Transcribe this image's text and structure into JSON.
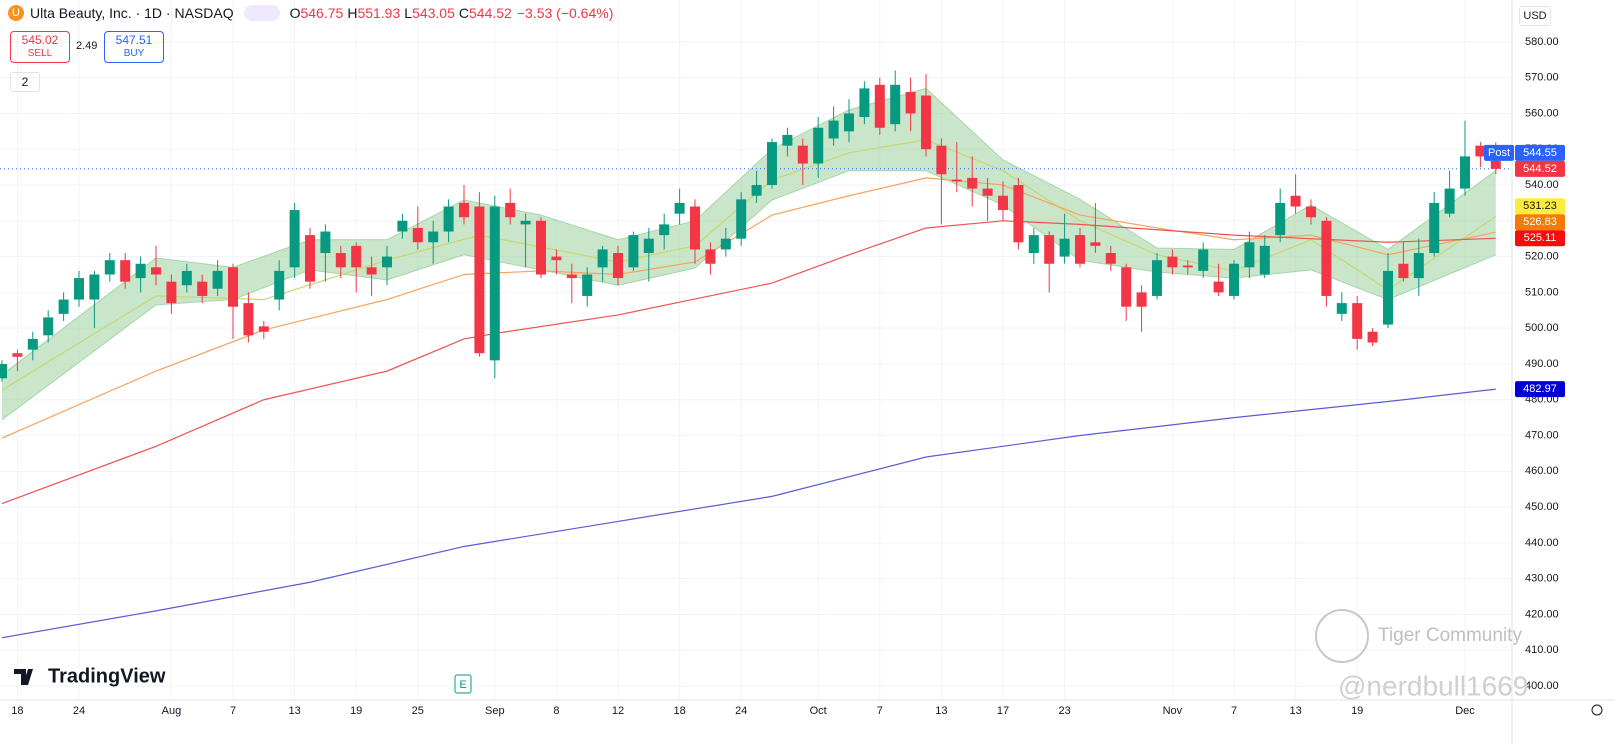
{
  "header": {
    "symbol": "Ulta Beauty, Inc. · 1D · NASDAQ",
    "icon": "U",
    "ohlc_keys": [
      "O",
      "H",
      "L",
      "C"
    ],
    "change": "−3.53 (−0.64%)",
    "sell_price": 545.02,
    "sell_label": "SELL",
    "spread": 2.49,
    "buy_price": 547.51,
    "buy_label": "BUY",
    "indicators": "2",
    "currency": "USD",
    "watermark": "TradingView",
    "community": "Tiger Community",
    "author": "@nerdbull1669",
    "earnings": "E"
  },
  "chart_data": {
    "type": "candlestick",
    "categories": [
      null,
      "18",
      null,
      null,
      null,
      "24",
      null,
      null,
      null,
      null,
      null,
      "Aug",
      null,
      null,
      null,
      "7",
      null,
      null,
      null,
      "13",
      null,
      null,
      null,
      "19",
      null,
      null,
      null,
      "25",
      null,
      null,
      null,
      null,
      "Sep",
      null,
      null,
      null,
      "8",
      null,
      null,
      null,
      "12",
      null,
      null,
      null,
      "18",
      null,
      null,
      null,
      "24",
      null,
      null,
      null,
      null,
      "Oct",
      null,
      null,
      null,
      "7",
      null,
      null,
      null,
      "13",
      null,
      null,
      null,
      "17",
      null,
      null,
      null,
      "23",
      null,
      null,
      null,
      null,
      null,
      null,
      "Nov",
      null,
      null,
      null,
      "7",
      null,
      null,
      null,
      "13",
      null,
      null,
      null,
      "19",
      null,
      null,
      null,
      null,
      null,
      null,
      "Dec",
      null,
      null
    ],
    "open": [
      486,
      493,
      494,
      498,
      504,
      508,
      508,
      515,
      519,
      514,
      517,
      513,
      512,
      513,
      511,
      517,
      507,
      500.5,
      508,
      517,
      526,
      521,
      521,
      523,
      517,
      517,
      527,
      528,
      524,
      527,
      535,
      534,
      491,
      535,
      529,
      530,
      520,
      515,
      509,
      517,
      521,
      517,
      521,
      526,
      532,
      534,
      522,
      522,
      525,
      537,
      540,
      551,
      551,
      546,
      553,
      555,
      559,
      568,
      557,
      566,
      565,
      551,
      541.5,
      542,
      539,
      537,
      540,
      521,
      526,
      520,
      526,
      524,
      521,
      517,
      510,
      509,
      520,
      517.5,
      516,
      513,
      509,
      517,
      515,
      526,
      537,
      534,
      530,
      504,
      507,
      499,
      501,
      518,
      514,
      521,
      532,
      539,
      551,
      546.75
    ],
    "high": [
      491,
      494,
      499,
      505,
      510,
      516,
      516,
      521,
      521,
      520,
      523,
      515,
      518,
      515,
      519,
      518,
      510,
      502,
      519,
      535,
      528,
      529,
      523,
      524,
      520,
      523,
      532,
      534,
      530,
      536,
      540,
      538,
      537,
      539,
      532,
      531,
      522,
      518,
      517,
      523,
      523,
      527,
      528,
      532,
      539,
      536,
      524,
      528,
      538,
      544,
      553,
      556,
      553,
      559,
      562,
      564,
      569,
      570,
      572,
      570,
      571,
      553,
      552,
      548,
      542,
      541,
      542,
      528,
      527,
      532,
      528,
      535,
      523,
      518,
      512,
      521,
      522,
      519,
      524,
      518,
      519,
      527,
      526,
      539,
      543,
      536,
      531,
      510,
      509,
      500,
      521,
      524,
      525,
      538,
      544,
      558,
      552,
      551.93
    ],
    "low": [
      485,
      488,
      491,
      496,
      502,
      506,
      500,
      513,
      511,
      510,
      512,
      504,
      510,
      507,
      509,
      497,
      496,
      497,
      505,
      514,
      511,
      513,
      514,
      510,
      509,
      512,
      525,
      522,
      518,
      524,
      529,
      492,
      486,
      529,
      517,
      514,
      515,
      507,
      506,
      513,
      512,
      516,
      513,
      522,
      529,
      518,
      515,
      520,
      523,
      535,
      539,
      548,
      540,
      542,
      551,
      552,
      557,
      554,
      555,
      555,
      548,
      529,
      538,
      534,
      530,
      530,
      522,
      518,
      510,
      518,
      517,
      521,
      516,
      502,
      499,
      508,
      515,
      515,
      514,
      509,
      508,
      514,
      514,
      524,
      532,
      529,
      506,
      502,
      494,
      495,
      500,
      513,
      509,
      520,
      531,
      537,
      545,
      543.05
    ],
    "close": [
      490,
      492,
      497,
      503,
      508,
      514,
      515,
      519,
      513,
      518,
      515,
      507,
      516,
      509,
      516,
      506,
      498,
      499,
      516,
      533,
      513,
      527,
      517,
      517,
      515,
      520,
      530,
      524,
      527,
      534,
      531,
      493,
      534,
      531,
      530,
      515,
      519,
      514,
      515,
      522,
      514,
      526,
      525,
      529,
      535,
      522,
      518,
      525,
      536,
      540,
      552,
      554,
      546,
      556,
      558,
      560,
      567,
      556,
      568,
      560,
      550,
      543,
      541,
      539,
      537,
      533,
      524,
      526,
      518,
      525,
      518,
      523,
      518,
      506,
      506,
      519,
      517,
      517,
      522,
      510,
      518,
      524,
      523,
      535,
      534,
      531,
      509,
      507,
      497,
      496,
      516,
      514,
      521,
      535,
      539,
      548,
      548,
      544.52
    ],
    "up_color": "#089981",
    "down_color": "#f23645",
    "band": {
      "color": "#a5d6a7",
      "x": [
        0,
        10,
        15,
        20,
        25,
        30,
        35,
        40,
        45,
        50,
        55,
        60,
        65,
        70,
        75,
        80,
        85,
        90,
        97
      ],
      "upper": [
        487,
        519.6,
        517,
        524.7,
        524.7,
        535.8,
        531.6,
        524.7,
        530,
        550,
        561,
        567,
        547,
        536,
        522.4,
        522,
        534.4,
        522,
        544
      ],
      "lower": [
        474.4,
        506.5,
        508,
        516.3,
        513.5,
        520.5,
        516.3,
        512,
        516.8,
        535.8,
        544,
        544,
        534.4,
        519,
        515.7,
        514,
        516.3,
        508,
        520.5
      ]
    },
    "series": [
      {
        "color": "#c5d86d",
        "label_color": "#ffeb3b",
        "label_text_color": "#131722",
        "x": [
          0,
          10,
          17,
          25,
          31,
          40,
          45,
          50,
          55,
          60,
          65,
          70,
          75,
          80,
          85,
          90,
          97
        ],
        "values": [
          482.7,
          509,
          508,
          519,
          526,
          518.5,
          523,
          541.4,
          549,
          552.6,
          544,
          530,
          520.5,
          516,
          524.7,
          510.7,
          531.23
        ]
      },
      {
        "color": "#f7a35c",
        "label_color": "#f57c00",
        "label_text_color": "#ffffff",
        "x": [
          0,
          10,
          17,
          25,
          30,
          35,
          40,
          45,
          50,
          55,
          60,
          65,
          70,
          75,
          80,
          85,
          90,
          97
        ],
        "values": [
          469.3,
          488,
          499.5,
          508,
          515,
          516,
          515,
          518.5,
          531.6,
          537,
          542,
          540,
          531.6,
          528,
          524.7,
          526,
          520.5,
          526.83
        ]
      },
      {
        "color": "#ef5350",
        "label_color": "#f70d0d",
        "label_text_color": "#ffffff",
        "x": [
          0,
          10,
          17,
          25,
          30,
          32,
          40,
          50,
          55,
          60,
          65,
          70,
          80,
          90,
          97
        ],
        "values": [
          451,
          467,
          480,
          488,
          497,
          498.5,
          503.7,
          512.6,
          520.5,
          528,
          530,
          529,
          526,
          524,
          525.11
        ]
      },
      {
        "color": "#5b5bd6",
        "label_color": "#0000d6",
        "label_text_color": "#ffffff",
        "x": [
          0,
          10,
          20,
          30,
          40,
          50,
          60,
          70,
          80,
          90,
          97
        ],
        "values": [
          413.5,
          421,
          429,
          439,
          446,
          453,
          464,
          470,
          475,
          479.5,
          482.97
        ]
      }
    ],
    "post_price": 544.55,
    "post_label": "Post",
    "post_color": "#2962ff",
    "ylim": [
      396.1,
      591.7
    ],
    "yticks": [
      {
        "value": 400,
        "label": "400.00"
      },
      {
        "value": 410,
        "label": "410.00"
      },
      {
        "value": 420,
        "label": "420.00"
      },
      {
        "value": 430,
        "label": "430.00"
      },
      {
        "value": 440,
        "label": "440.00"
      },
      {
        "value": 450,
        "label": "450.00"
      },
      {
        "value": 460,
        "label": "460.00"
      },
      {
        "value": 470,
        "label": "470.00"
      },
      {
        "value": 480,
        "label": "480.00"
      },
      {
        "value": 490,
        "label": "490.00"
      },
      {
        "value": 500,
        "label": "500.00"
      },
      {
        "value": 510,
        "label": "510.00"
      },
      {
        "value": 520,
        "label": "520.00"
      },
      {
        "value": 530,
        "label": "530.00"
      },
      {
        "value": 540,
        "label": "540.00"
      },
      {
        "value": 550,
        "label": "550.00"
      },
      {
        "value": 560,
        "label": "560.00"
      },
      {
        "value": 570,
        "label": "570.00"
      },
      {
        "value": 580,
        "label": "580.00"
      }
    ],
    "grid": true
  }
}
